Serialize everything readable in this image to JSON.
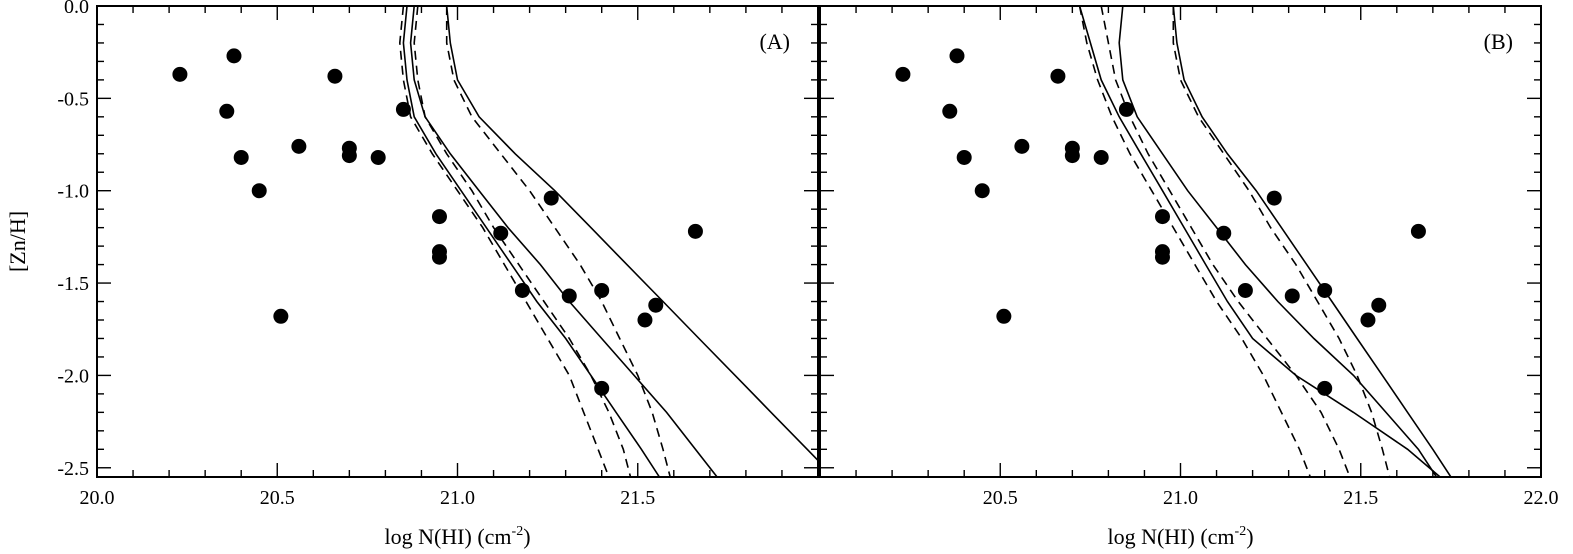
{
  "chart_data": [
    {
      "type": "scatter",
      "panel_label": "(A)",
      "xlabel": "log N(HI) (cm",
      "xlabel_sup": "-2",
      "xlabel_close": ")",
      "ylabel": "[Zn/H]",
      "xlim": [
        20.0,
        22.0
      ],
      "ylim": [
        -2.55,
        0.0
      ],
      "x_ticks": [
        20.0,
        20.5,
        21.0,
        21.5
      ],
      "x_tick_labels": [
        "20.0",
        "20.5",
        "21.0",
        "21.5"
      ],
      "y_ticks": [
        0.0,
        -0.5,
        -1.0,
        -1.5,
        -2.0,
        -2.5
      ],
      "y_tick_labels": [
        "0.0",
        "-0.5",
        "-1.0",
        "-1.5",
        "-2.0",
        "-2.5"
      ],
      "points": [
        {
          "x": 20.23,
          "y": -0.37
        },
        {
          "x": 20.38,
          "y": -0.27
        },
        {
          "x": 20.36,
          "y": -0.57
        },
        {
          "x": 20.4,
          "y": -0.82
        },
        {
          "x": 20.45,
          "y": -1.0
        },
        {
          "x": 20.51,
          "y": -1.68
        },
        {
          "x": 20.56,
          "y": -0.76
        },
        {
          "x": 20.66,
          "y": -0.38
        },
        {
          "x": 20.7,
          "y": -0.77
        },
        {
          "x": 20.7,
          "y": -0.81
        },
        {
          "x": 20.78,
          "y": -0.82
        },
        {
          "x": 20.85,
          "y": -0.56
        },
        {
          "x": 20.95,
          "y": -1.14
        },
        {
          "x": 20.95,
          "y": -1.33
        },
        {
          "x": 20.95,
          "y": -1.36
        },
        {
          "x": 21.12,
          "y": -1.23
        },
        {
          "x": 21.18,
          "y": -1.54
        },
        {
          "x": 21.26,
          "y": -1.04
        },
        {
          "x": 21.31,
          "y": -1.57
        },
        {
          "x": 21.4,
          "y": -1.54
        },
        {
          "x": 21.4,
          "y": -2.07
        },
        {
          "x": 21.52,
          "y": -1.7
        },
        {
          "x": 21.55,
          "y": -1.62
        },
        {
          "x": 21.66,
          "y": -1.22
        }
      ],
      "curves": [
        {
          "style": "solid",
          "points": [
            [
              20.97,
              0.0
            ],
            [
              20.98,
              -0.2
            ],
            [
              21.0,
              -0.4
            ],
            [
              21.06,
              -0.6
            ],
            [
              21.16,
              -0.8
            ],
            [
              21.27,
              -1.0
            ],
            [
              21.37,
              -1.2
            ],
            [
              21.47,
              -1.4
            ],
            [
              21.57,
              -1.6
            ],
            [
              21.67,
              -1.8
            ],
            [
              21.77,
              -2.0
            ],
            [
              21.87,
              -2.2
            ],
            [
              21.97,
              -2.4
            ],
            [
              22.0,
              -2.46
            ]
          ]
        },
        {
          "style": "solid",
          "points": [
            [
              20.88,
              0.0
            ],
            [
              20.87,
              -0.2
            ],
            [
              20.88,
              -0.4
            ],
            [
              20.91,
              -0.6
            ],
            [
              20.98,
              -0.8
            ],
            [
              21.06,
              -1.0
            ],
            [
              21.14,
              -1.2
            ],
            [
              21.23,
              -1.4
            ],
            [
              21.31,
              -1.6
            ],
            [
              21.4,
              -1.8
            ],
            [
              21.49,
              -2.0
            ],
            [
              21.58,
              -2.2
            ],
            [
              21.66,
              -2.4
            ],
            [
              21.72,
              -2.55
            ]
          ]
        },
        {
          "style": "solid",
          "points": [
            [
              20.86,
              0.0
            ],
            [
              20.85,
              -0.2
            ],
            [
              20.86,
              -0.4
            ],
            [
              20.88,
              -0.6
            ],
            [
              20.94,
              -0.8
            ],
            [
              21.01,
              -1.0
            ],
            [
              21.08,
              -1.2
            ],
            [
              21.15,
              -1.4
            ],
            [
              21.22,
              -1.6
            ],
            [
              21.3,
              -1.8
            ],
            [
              21.37,
              -2.0
            ],
            [
              21.44,
              -2.2
            ],
            [
              21.51,
              -2.4
            ],
            [
              21.56,
              -2.55
            ]
          ]
        },
        {
          "style": "dashed",
          "points": [
            [
              20.97,
              0.0
            ],
            [
              20.97,
              -0.2
            ],
            [
              20.99,
              -0.4
            ],
            [
              21.04,
              -0.6
            ],
            [
              21.12,
              -0.8
            ],
            [
              21.2,
              -1.0
            ],
            [
              21.27,
              -1.2
            ],
            [
              21.34,
              -1.4
            ],
            [
              21.4,
              -1.6
            ],
            [
              21.45,
              -1.8
            ],
            [
              21.5,
              -2.0
            ],
            [
              21.54,
              -2.2
            ],
            [
              21.57,
              -2.4
            ],
            [
              21.59,
              -2.55
            ]
          ]
        },
        {
          "style": "dashed",
          "points": [
            [
              20.89,
              0.0
            ],
            [
              20.88,
              -0.2
            ],
            [
              20.89,
              -0.4
            ],
            [
              20.91,
              -0.6
            ],
            [
              20.97,
              -0.8
            ],
            [
              21.04,
              -1.0
            ],
            [
              21.1,
              -1.2
            ],
            [
              21.17,
              -1.4
            ],
            [
              21.24,
              -1.6
            ],
            [
              21.31,
              -1.8
            ],
            [
              21.37,
              -2.0
            ],
            [
              21.42,
              -2.2
            ],
            [
              21.46,
              -2.4
            ],
            [
              21.48,
              -2.55
            ]
          ]
        },
        {
          "style": "dashed",
          "points": [
            [
              20.85,
              0.0
            ],
            [
              20.84,
              -0.2
            ],
            [
              20.85,
              -0.4
            ],
            [
              20.87,
              -0.6
            ],
            [
              20.93,
              -0.8
            ],
            [
              21.0,
              -1.0
            ],
            [
              21.07,
              -1.2
            ],
            [
              21.13,
              -1.4
            ],
            [
              21.19,
              -1.6
            ],
            [
              21.25,
              -1.8
            ],
            [
              21.31,
              -2.0
            ],
            [
              21.35,
              -2.2
            ],
            [
              21.39,
              -2.4
            ],
            [
              21.42,
              -2.55
            ]
          ]
        }
      ]
    },
    {
      "type": "scatter",
      "panel_label": "(B)",
      "xlabel": "log N(HI) (cm",
      "xlabel_sup": "-2",
      "xlabel_close": ")",
      "xlim": [
        20.0,
        22.0
      ],
      "ylim": [
        -2.55,
        0.0
      ],
      "x_ticks": [
        20.5,
        21.0,
        21.5,
        22.0
      ],
      "x_tick_labels": [
        "20.5",
        "21.0",
        "21.5",
        "22.0"
      ],
      "points": [
        {
          "x": 20.23,
          "y": -0.37
        },
        {
          "x": 20.38,
          "y": -0.27
        },
        {
          "x": 20.36,
          "y": -0.57
        },
        {
          "x": 20.4,
          "y": -0.82
        },
        {
          "x": 20.45,
          "y": -1.0
        },
        {
          "x": 20.51,
          "y": -1.68
        },
        {
          "x": 20.56,
          "y": -0.76
        },
        {
          "x": 20.66,
          "y": -0.38
        },
        {
          "x": 20.7,
          "y": -0.77
        },
        {
          "x": 20.7,
          "y": -0.81
        },
        {
          "x": 20.78,
          "y": -0.82
        },
        {
          "x": 20.85,
          "y": -0.56
        },
        {
          "x": 20.95,
          "y": -1.14
        },
        {
          "x": 20.95,
          "y": -1.33
        },
        {
          "x": 20.95,
          "y": -1.36
        },
        {
          "x": 21.12,
          "y": -1.23
        },
        {
          "x": 21.18,
          "y": -1.54
        },
        {
          "x": 21.26,
          "y": -1.04
        },
        {
          "x": 21.31,
          "y": -1.57
        },
        {
          "x": 21.4,
          "y": -1.54
        },
        {
          "x": 21.4,
          "y": -2.07
        },
        {
          "x": 21.52,
          "y": -1.7
        },
        {
          "x": 21.55,
          "y": -1.62
        },
        {
          "x": 21.66,
          "y": -1.22
        }
      ],
      "curves": [
        {
          "style": "solid",
          "points": [
            [
              20.98,
              0.0
            ],
            [
              20.99,
              -0.2
            ],
            [
              21.01,
              -0.4
            ],
            [
              21.06,
              -0.6
            ],
            [
              21.13,
              -0.8
            ],
            [
              21.21,
              -1.0
            ],
            [
              21.28,
              -1.2
            ],
            [
              21.35,
              -1.4
            ],
            [
              21.42,
              -1.6
            ],
            [
              21.49,
              -1.8
            ],
            [
              21.56,
              -2.0
            ],
            [
              21.63,
              -2.2
            ],
            [
              21.7,
              -2.4
            ],
            [
              21.75,
              -2.55
            ]
          ]
        },
        {
          "style": "solid",
          "points": [
            [
              20.84,
              0.0
            ],
            [
              20.83,
              -0.2
            ],
            [
              20.84,
              -0.4
            ],
            [
              20.88,
              -0.6
            ],
            [
              20.95,
              -0.8
            ],
            [
              21.02,
              -1.0
            ],
            [
              21.1,
              -1.2
            ],
            [
              21.18,
              -1.4
            ],
            [
              21.27,
              -1.6
            ],
            [
              21.37,
              -1.8
            ],
            [
              21.48,
              -2.0
            ],
            [
              21.57,
              -2.2
            ],
            [
              21.66,
              -2.4
            ],
            [
              21.71,
              -2.55
            ]
          ]
        },
        {
          "style": "solid",
          "points": [
            [
              20.72,
              0.0
            ],
            [
              20.75,
              -0.2
            ],
            [
              20.78,
              -0.4
            ],
            [
              20.83,
              -0.6
            ],
            [
              20.89,
              -0.8
            ],
            [
              20.95,
              -1.0
            ],
            [
              21.01,
              -1.2
            ],
            [
              21.07,
              -1.4
            ],
            [
              21.13,
              -1.6
            ],
            [
              21.2,
              -1.8
            ],
            [
              21.32,
              -2.0
            ],
            [
              21.48,
              -2.2
            ],
            [
              21.63,
              -2.4
            ],
            [
              21.72,
              -2.55
            ]
          ]
        },
        {
          "style": "dashed",
          "points": [
            [
              20.98,
              0.0
            ],
            [
              20.98,
              -0.2
            ],
            [
              21.0,
              -0.4
            ],
            [
              21.05,
              -0.6
            ],
            [
              21.12,
              -0.8
            ],
            [
              21.19,
              -1.0
            ],
            [
              21.25,
              -1.2
            ],
            [
              21.32,
              -1.4
            ],
            [
              21.38,
              -1.6
            ],
            [
              21.44,
              -1.8
            ],
            [
              21.49,
              -2.0
            ],
            [
              21.53,
              -2.2
            ],
            [
              21.56,
              -2.4
            ],
            [
              21.58,
              -2.55
            ]
          ]
        },
        {
          "style": "dashed",
          "points": [
            [
              20.78,
              0.0
            ],
            [
              20.8,
              -0.2
            ],
            [
              20.82,
              -0.4
            ],
            [
              20.86,
              -0.6
            ],
            [
              20.91,
              -0.8
            ],
            [
              20.97,
              -1.0
            ],
            [
              21.03,
              -1.2
            ],
            [
              21.09,
              -1.4
            ],
            [
              21.16,
              -1.6
            ],
            [
              21.24,
              -1.8
            ],
            [
              21.32,
              -2.0
            ],
            [
              21.39,
              -2.2
            ],
            [
              21.44,
              -2.4
            ],
            [
              21.47,
              -2.55
            ]
          ]
        },
        {
          "style": "dashed",
          "points": [
            [
              20.72,
              0.0
            ],
            [
              20.74,
              -0.2
            ],
            [
              20.77,
              -0.4
            ],
            [
              20.81,
              -0.6
            ],
            [
              20.86,
              -0.8
            ],
            [
              20.92,
              -1.0
            ],
            [
              20.98,
              -1.2
            ],
            [
              21.04,
              -1.4
            ],
            [
              21.1,
              -1.6
            ],
            [
              21.17,
              -1.8
            ],
            [
              21.23,
              -2.0
            ],
            [
              21.28,
              -2.2
            ],
            [
              21.33,
              -2.4
            ],
            [
              21.36,
              -2.55
            ]
          ]
        }
      ]
    }
  ]
}
